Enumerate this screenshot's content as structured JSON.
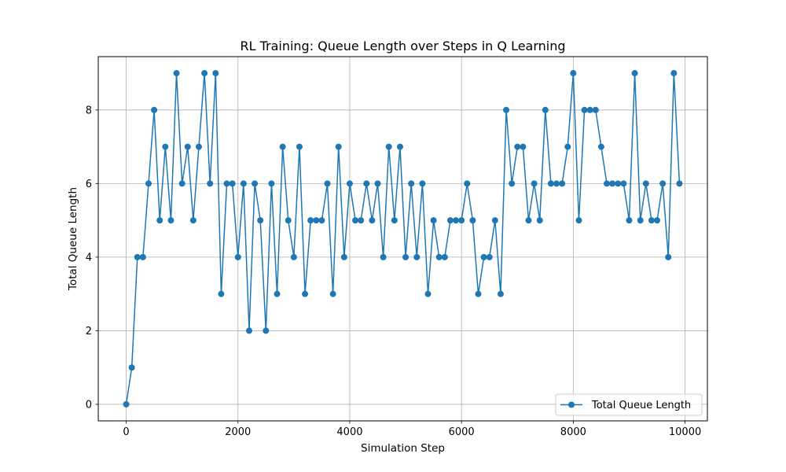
{
  "chart_data": {
    "type": "line",
    "title": "RL Training: Queue Length over Steps in Q Learning",
    "xlabel": "Simulation Step",
    "ylabel": "Total Queue Length",
    "xlim": [
      -500,
      10400
    ],
    "ylim": [
      -0.45,
      9.45
    ],
    "xticks": [
      0,
      2000,
      4000,
      6000,
      8000,
      10000
    ],
    "yticks": [
      0,
      2,
      4,
      6,
      8
    ],
    "grid": true,
    "legend_position": "lower-right",
    "marker": "circle",
    "series": [
      {
        "name": "Total Queue Length",
        "color": "#1f77b4",
        "x": [
          0,
          100,
          200,
          300,
          400,
          500,
          600,
          700,
          800,
          900,
          1000,
          1100,
          1200,
          1300,
          1400,
          1500,
          1600,
          1700,
          1800,
          1900,
          2000,
          2100,
          2200,
          2300,
          2400,
          2500,
          2600,
          2700,
          2800,
          2900,
          3000,
          3100,
          3200,
          3300,
          3400,
          3500,
          3600,
          3700,
          3800,
          3900,
          4000,
          4100,
          4200,
          4300,
          4400,
          4500,
          4600,
          4700,
          4800,
          4900,
          5000,
          5100,
          5200,
          5300,
          5400,
          5500,
          5600,
          5700,
          5800,
          5900,
          6000,
          6100,
          6200,
          6300,
          6400,
          6500,
          6600,
          6700,
          6800,
          6900,
          7000,
          7100,
          7200,
          7300,
          7400,
          7500,
          7600,
          7700,
          7800,
          7900,
          8000,
          8100,
          8200,
          8300,
          8400,
          8500,
          8600,
          8700,
          8800,
          8900,
          9000,
          9100,
          9200,
          9300,
          9400,
          9500,
          9600,
          9700,
          9800,
          9900
        ],
        "y": [
          0,
          1,
          4,
          4,
          6,
          8,
          5,
          7,
          5,
          9,
          6,
          7,
          5,
          7,
          9,
          6,
          9,
          3,
          6,
          6,
          4,
          6,
          2,
          6,
          5,
          2,
          6,
          3,
          7,
          5,
          4,
          7,
          3,
          5,
          5,
          5,
          6,
          3,
          7,
          4,
          6,
          5,
          5,
          6,
          5,
          6,
          4,
          7,
          5,
          7,
          4,
          6,
          4,
          6,
          3,
          5,
          4,
          4,
          5,
          5,
          5,
          6,
          5,
          3,
          4,
          4,
          5,
          3,
          8,
          6,
          7,
          7,
          5,
          6,
          5,
          8,
          6,
          6,
          6,
          7,
          9,
          5,
          8,
          8,
          8,
          7,
          6,
          6,
          6,
          6,
          5,
          9,
          5,
          6,
          5,
          5,
          6,
          4,
          9,
          6
        ]
      }
    ]
  }
}
